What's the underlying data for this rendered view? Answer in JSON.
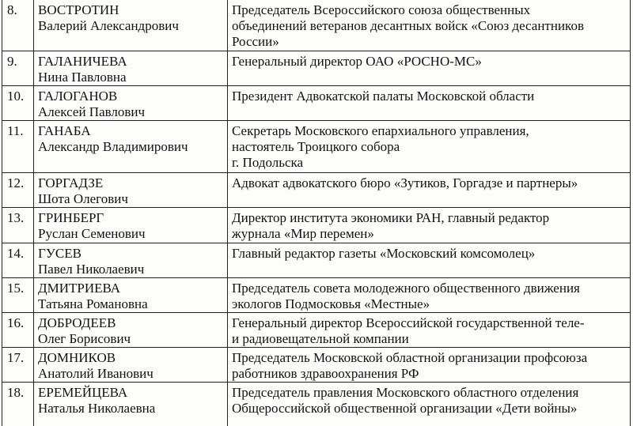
{
  "table": {
    "rows": [
      {
        "number": "8.",
        "name": [
          "ВОСТРОТИН",
          "Валерий Александрович"
        ],
        "position": [
          "Председатель Всероссийского союза общественных",
          "объединений ветеранов десантных войск «Союз десантников",
          "России»"
        ]
      },
      {
        "number": "9.",
        "name": [
          "ГАЛАНИЧЕВА",
          "Нина Павловна"
        ],
        "position": [
          "Генеральный директор ОАО «РОСНО-МС»"
        ]
      },
      {
        "number": "10.",
        "name": [
          "ГАЛОГАНОВ",
          "Алексей Павлович"
        ],
        "position": [
          "Президент Адвокатской палаты Московской области"
        ]
      },
      {
        "number": "11.",
        "name": [
          "ГАНАБА",
          "Александр Владимирович"
        ],
        "position": [
          "Секретарь Московского епархиального управления,",
          "настоятель Троицкого собора",
          "г. Подольска"
        ]
      },
      {
        "number": "12.",
        "name": [
          "ГОРГАДЗЕ",
          "Шота Олегович"
        ],
        "position": [
          "Адвокат адвокатского бюро «Зутиков, Горгадзе и партнеры»"
        ]
      },
      {
        "number": "13.",
        "name": [
          "ГРИНБЕРГ",
          "Руслан Семенович"
        ],
        "position": [
          "Директор института экономики РАН, главный редактор",
          "журнала «Мир перемен»"
        ]
      },
      {
        "number": "14.",
        "name": [
          "ГУСЕВ",
          "Павел Николаевич"
        ],
        "position": [
          "Главный редактор газеты «Московский комсомолец»"
        ]
      },
      {
        "number": "15.",
        "name": [
          "ДМИТРИЕВА",
          "Татьяна Романовна"
        ],
        "position": [
          "Председатель совета молодежного общественного движения",
          "экологов Подмосковья «Местные»"
        ]
      },
      {
        "number": "16.",
        "name": [
          "ДОБРОДЕЕВ",
          "Олег Борисович"
        ],
        "position": [
          "Генеральный директор Всероссийской государственной теле-",
          "и радиовещательной компании"
        ]
      },
      {
        "number": "17.",
        "name": [
          "ДОМНИКОВ",
          "Анатолий Иванович"
        ],
        "position": [
          "Председатель Московской областной организации профсоюза",
          "работников здравоохранения РФ"
        ]
      },
      {
        "number": "18.",
        "name": [
          "ЕРЕМЕЙЦЕВА",
          "Наталья Николаевна"
        ],
        "position": [
          "Председатель правления Московского областного отделения",
          "Общероссийской общественной организации «Дети войны»"
        ]
      }
    ]
  }
}
